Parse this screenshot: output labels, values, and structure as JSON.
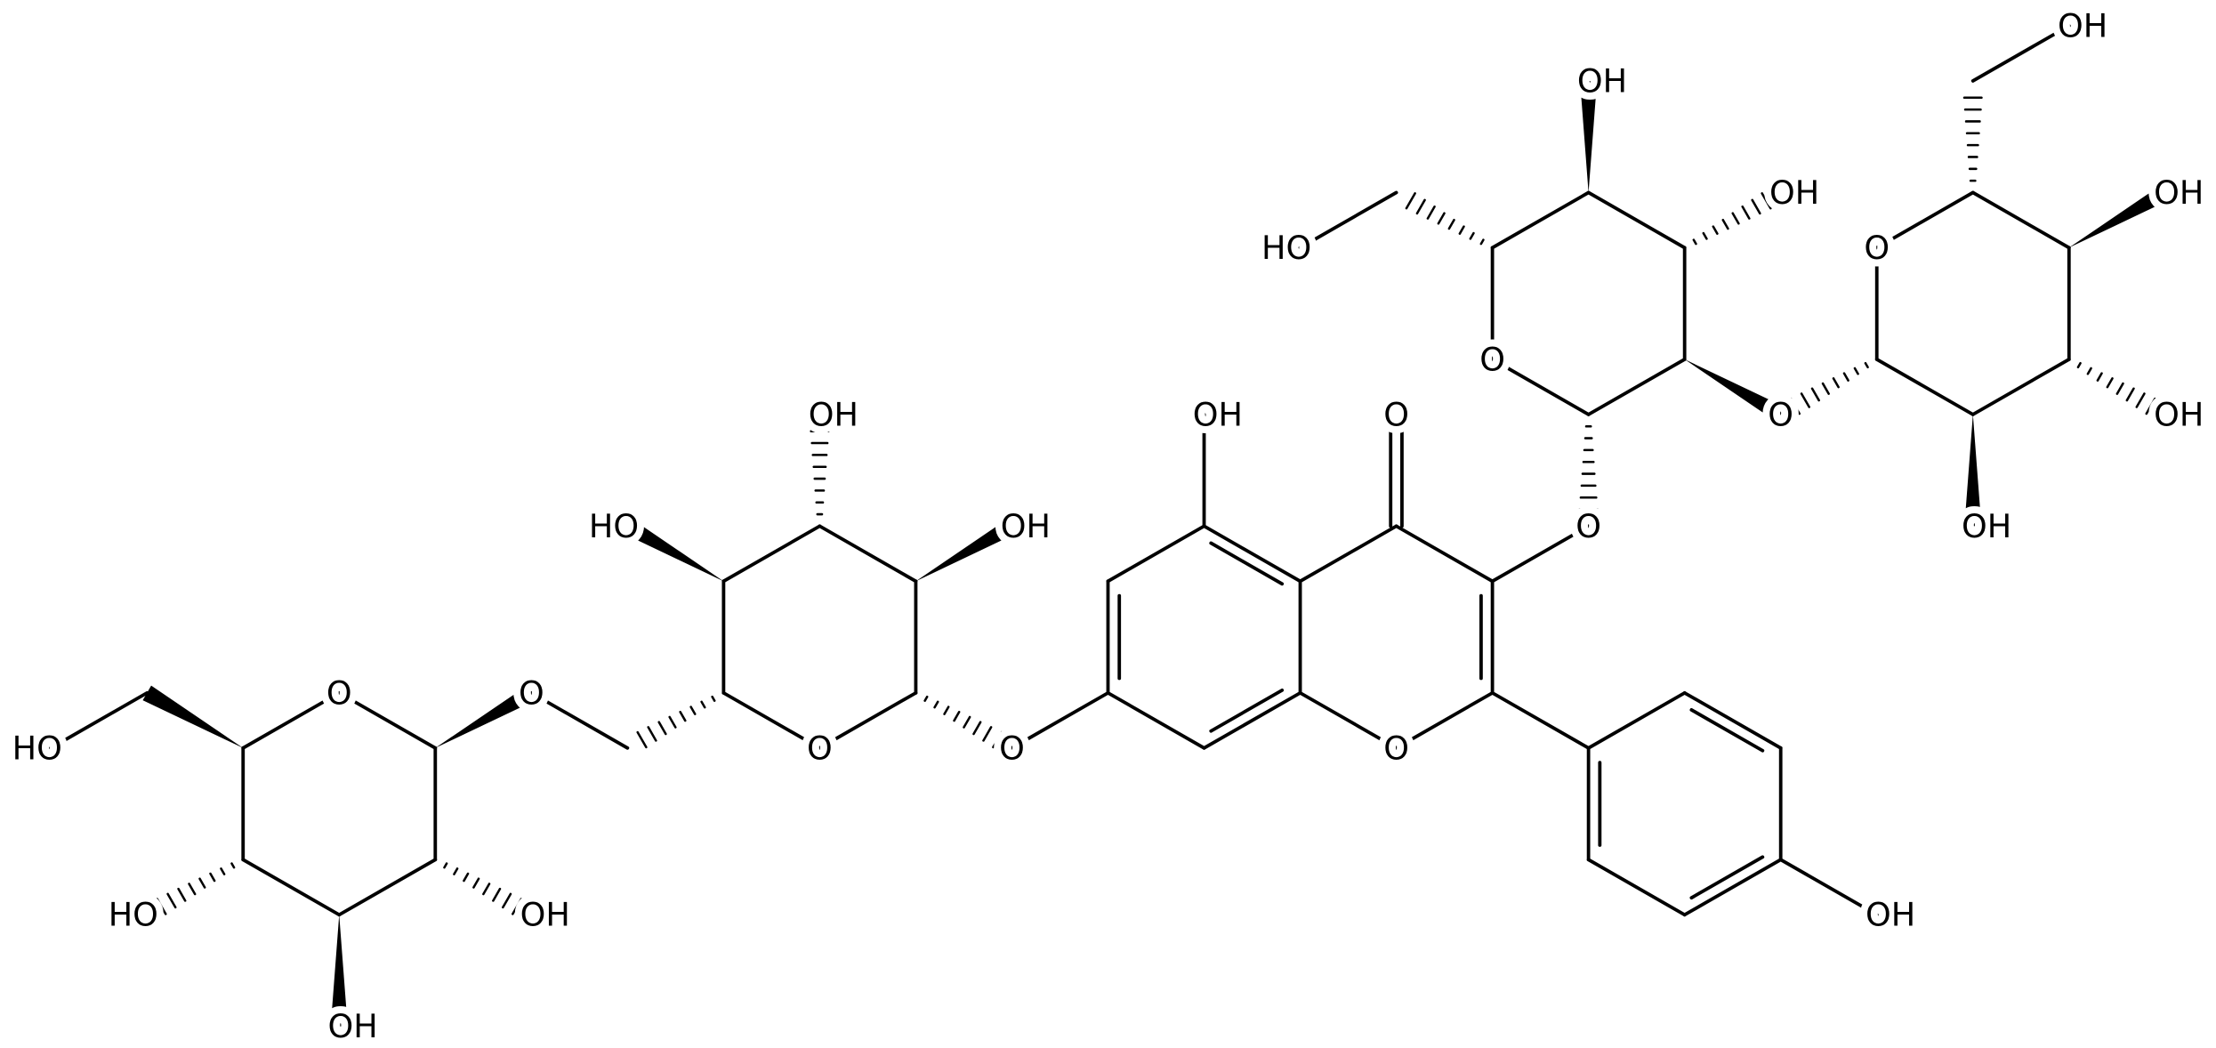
{
  "atom_labels": [
    "OH",
    "O",
    "O",
    "O",
    "O",
    "OH",
    "O",
    "OH",
    "OH",
    "HO",
    "O",
    "O",
    "HO",
    "HO",
    "OH",
    "OH",
    "O",
    "HO",
    "OH",
    "OH",
    "O",
    "O",
    "OH",
    "OH",
    "OH",
    "OH"
  ]
}
